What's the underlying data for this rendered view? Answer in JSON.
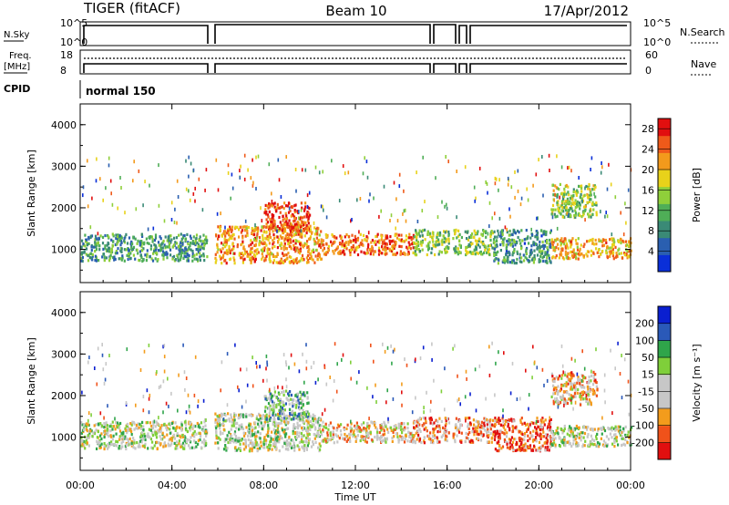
{
  "header": {
    "station": "TIGER (fitACF)",
    "beam": "Beam 10",
    "date": "17/Apr/2012"
  },
  "small_panels": {
    "nsky_label": "N.Sky",
    "nsky_ticks": [
      "10^5",
      "10^0"
    ],
    "nsearch_label": "N.Search",
    "freq_label_line1": "Freq.",
    "freq_label_line2": "[MHz]",
    "freq_ticks": [
      "18",
      "8"
    ],
    "nave_label": "Nave",
    "nave_ticks": [
      "60",
      "0"
    ],
    "cpid_label": "CPID",
    "cpid_value": "normal 150"
  },
  "colors": {
    "power_scale": [
      "#0a2fd8",
      "#2a5fb0",
      "#3a8a76",
      "#4fae57",
      "#8fcf3a",
      "#e8d21a",
      "#f39a1c",
      "#ef5a1a",
      "#e10f0f"
    ],
    "velocity_scale": [
      "#e10f0f",
      "#f0521a",
      "#f39c1c",
      "#c7c7c7",
      "#c7c7c7",
      "#7fcf3a",
      "#2fa54a",
      "#2a59b8",
      "#0a1fd0"
    ],
    "ground_scatter": "#c7c7c7"
  },
  "chart_data": [
    {
      "type": "heatmap",
      "title": "",
      "xlabel": "",
      "ylabel": "Slant Range [km]",
      "x_ticks": [
        "00:00",
        "04:00",
        "08:00",
        "12:00",
        "16:00",
        "20:00",
        "00:00"
      ],
      "y_ticks": [
        "1000",
        "2000",
        "3000",
        "4000"
      ],
      "xlim_hours": [
        0,
        24
      ],
      "ylim_km": [
        200,
        4500
      ],
      "colorbar_label": "Power [dB]",
      "colorbar_ticks": [
        "4",
        "8",
        "12",
        "16",
        "20",
        "24",
        "28"
      ],
      "colorbar_range": [
        0,
        30
      ],
      "data_gaps_hours": [
        [
          5.5,
          5.85
        ],
        [
          16.05,
          16.2
        ],
        [
          16.6,
          16.75
        ]
      ],
      "echo_regions": [
        {
          "start_h": 0.0,
          "end_h": 5.5,
          "min_km": 750,
          "max_km": 1400,
          "power_db": 10
        },
        {
          "start_h": 5.85,
          "end_h": 10.5,
          "min_km": 700,
          "max_km": 1600,
          "power_db": 22
        },
        {
          "start_h": 8.0,
          "end_h": 10.0,
          "min_km": 1450,
          "max_km": 2150,
          "power_db": 26
        },
        {
          "start_h": 10.5,
          "end_h": 14.5,
          "min_km": 900,
          "max_km": 1400,
          "power_db": 24
        },
        {
          "start_h": 14.5,
          "end_h": 18.0,
          "min_km": 900,
          "max_km": 1500,
          "power_db": 14
        },
        {
          "start_h": 18.0,
          "end_h": 20.5,
          "min_km": 700,
          "max_km": 1500,
          "power_db": 9
        },
        {
          "start_h": 20.5,
          "end_h": 24.0,
          "min_km": 800,
          "max_km": 1300,
          "power_db": 21
        },
        {
          "start_h": 20.5,
          "end_h": 22.5,
          "min_km": 1800,
          "max_km": 2600,
          "power_db": 15
        }
      ]
    },
    {
      "type": "heatmap",
      "title": "",
      "xlabel": "Time UT",
      "ylabel": "Slant Range [km]",
      "x_ticks": [
        "00:00",
        "04:00",
        "08:00",
        "12:00",
        "16:00",
        "20:00",
        "00:00"
      ],
      "y_ticks": [
        "1000",
        "2000",
        "3000",
        "4000"
      ],
      "xlim_hours": [
        0,
        24
      ],
      "ylim_km": [
        200,
        4500
      ],
      "colorbar_label": "Velocity [m s⁻¹]",
      "colorbar_ticks": [
        "200",
        "100",
        "50",
        "15",
        "-15",
        "-50",
        "-100",
        "-200"
      ],
      "colorbar_range": [
        -250,
        250
      ],
      "data_gaps_hours": [
        [
          5.5,
          5.85
        ],
        [
          16.05,
          16.2
        ],
        [
          16.6,
          16.75
        ]
      ],
      "echo_regions": [
        {
          "start_h": 0.0,
          "end_h": 5.5,
          "min_km": 750,
          "max_km": 1400,
          "velocity": 0
        },
        {
          "start_h": 5.85,
          "end_h": 10.5,
          "min_km": 700,
          "max_km": 1600,
          "velocity": 0
        },
        {
          "start_h": 8.0,
          "end_h": 10.0,
          "min_km": 1450,
          "max_km": 2150,
          "velocity": 60
        },
        {
          "start_h": 10.5,
          "end_h": 14.5,
          "min_km": 900,
          "max_km": 1400,
          "velocity": -60
        },
        {
          "start_h": 14.5,
          "end_h": 18.0,
          "min_km": 900,
          "max_km": 1500,
          "velocity": -120
        },
        {
          "start_h": 18.0,
          "end_h": 20.5,
          "min_km": 700,
          "max_km": 1500,
          "velocity": -180
        },
        {
          "start_h": 20.5,
          "end_h": 24.0,
          "min_km": 800,
          "max_km": 1300,
          "velocity": 0
        },
        {
          "start_h": 20.5,
          "end_h": 22.5,
          "min_km": 1800,
          "max_km": 2600,
          "velocity": -80
        }
      ]
    }
  ]
}
